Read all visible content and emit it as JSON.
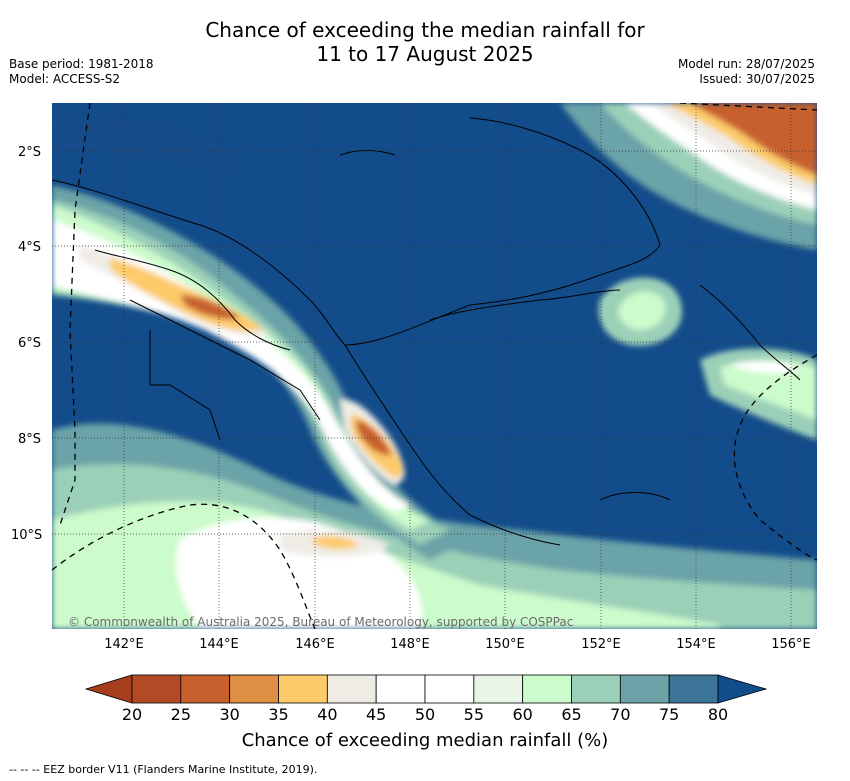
{
  "header": {
    "title_line1": "Chance of exceeding the median rainfall for",
    "title_line2": "11 to 17 August 2025",
    "base_period": "Base period: 1981-2018",
    "model": "Model: ACCESS-S2",
    "model_run": "Model run: 28/07/2025",
    "issued": "Issued: 30/07/2025"
  },
  "map": {
    "lat_ticks": [
      "2°S",
      "4°S",
      "6°S",
      "8°S",
      "10°S"
    ],
    "lon_ticks": [
      "142°E",
      "144°E",
      "146°E",
      "148°E",
      "150°E",
      "152°E",
      "154°E",
      "156°E"
    ],
    "copyright": "© Commonwealth of Australia 2025, Bureau of Meteorology, supported by COSPPac",
    "ocean_color": "#134c8a"
  },
  "colorbar": {
    "label": "Chance of exceeding median rainfall (%)",
    "ticks": [
      "20",
      "25",
      "30",
      "35",
      "40",
      "45",
      "50",
      "55",
      "60",
      "65",
      "70",
      "75",
      "80"
    ],
    "colors": [
      "#a63e1e",
      "#b24a26",
      "#c8602e",
      "#e09045",
      "#fdcb6a",
      "#efece6",
      "#ffffff",
      "#ffffff",
      "#e9f5e6",
      "#ccfbcc",
      "#9bd0b8",
      "#6ba3a8",
      "#3f7499",
      "#134c8a"
    ]
  },
  "footer": {
    "legend_text": "--  --  -- EEZ border V11 (Flanders Marine Institute, 2019)."
  }
}
